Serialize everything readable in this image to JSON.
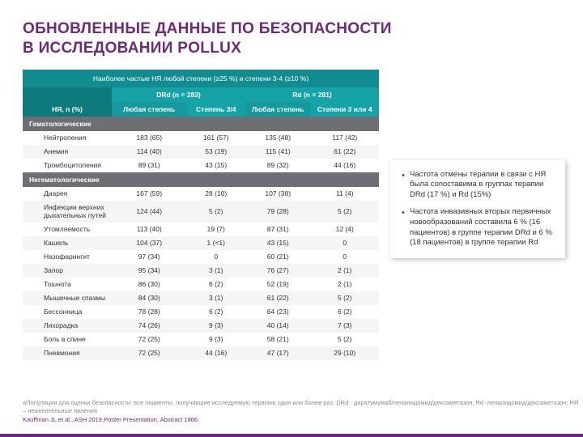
{
  "title_line1": "ОБНОВЛЕННЫЕ ДАННЫЕ ПО БЕЗОПАСНОСТИ",
  "title_line2": "В ИССЛЕДОВАНИИ POLLUX",
  "table": {
    "header_top": "Наиболее частые НЯ любой степени (≥25 %) и степени 3-4 (≥10 %)",
    "arm1": "DRd (n = 283)",
    "arm2": "Rd (n = 281)",
    "col0": "НЯ, n (%)",
    "col1": "Любая степень",
    "col2": "Степень 3/4",
    "col3": "Любая степень",
    "col4": "Степени 3 или 4",
    "sections": [
      {
        "title": "Гематологические",
        "rows": [
          {
            "name": "Нейтропения",
            "c": [
              "183 (65)",
              "161 (57)",
              "135 (48)",
              "117 (42)"
            ]
          },
          {
            "name": "Анемия",
            "c": [
              "114 (40)",
              "53 (19)",
              "115 (41)",
              "61 (22)"
            ]
          },
          {
            "name": "Тромбоцитопения",
            "c": [
              "89 (31)",
              "43 (15)",
              "89 (32)",
              "44 (16)"
            ]
          }
        ]
      },
      {
        "title": "Негематологические",
        "rows": [
          {
            "name": "Диарея",
            "c": [
              "167 (59)",
              "28 (10)",
              "107 (38)",
              "11 (4)"
            ]
          },
          {
            "name": "Инфекции верхних дыхательных путей",
            "c": [
              "124 (44)",
              "5 (2)",
              "79 (28)",
              "5 (2)"
            ]
          },
          {
            "name": "Утомляемость",
            "c": [
              "113 (40)",
              "19 (7)",
              "87 (31)",
              "12 (4)"
            ]
          },
          {
            "name": "Кашель",
            "c": [
              "104 (37)",
              "1 (<1)",
              "43 (15)",
              "0"
            ]
          },
          {
            "name": "Назофарингит",
            "c": [
              "97 (34)",
              "0",
              "60 (21)",
              "0"
            ]
          },
          {
            "name": "Запор",
            "c": [
              "95 (34)",
              "3 (1)",
              "76 (27)",
              "2 (1)"
            ]
          },
          {
            "name": "Тошнота",
            "c": [
              "86 (30)",
              "6 (2)",
              "52 (19)",
              "2 (1)"
            ]
          },
          {
            "name": "Мышечные спазмы",
            "c": [
              "84 (30)",
              "3 (1)",
              "61 (22)",
              "5 (2)"
            ]
          },
          {
            "name": "Бессонница",
            "c": [
              "78 (28)",
              "6 (2)",
              "64 (23)",
              "6 (2)"
            ]
          },
          {
            "name": "Лихорадка",
            "c": [
              "74 (26)",
              "9 (3)",
              "40 (14)",
              "7 (3)"
            ]
          },
          {
            "name": "Боль в спине",
            "c": [
              "72 (25)",
              "9 (3)",
              "58 (21)",
              "5 (2)"
            ]
          },
          {
            "name": "Пневмония",
            "c": [
              "72 (25)",
              "44 (16)",
              "47 (17)",
              "29 (10)"
            ]
          }
        ]
      }
    ]
  },
  "bullets": [
    "Частота отмены терапии в связи с НЯ была сопоставима в группах терапии DRd (17 %) и Rd (15%)",
    "Частота инвазивных вторых первичных новообразований составила 6 % (16 пациентов) в группе терапии DRd и 6 % (18 пациентов) в группе терапии Rd"
  ],
  "footnote1": "aПопуляция для оценки безопасности: все пациенты, получившие исследуемую терапию один или более раз; DRd - даратумумаб/леналидомид/дексаметазон; Rd -леналидомид/дексаметазон; НЯ – нежелательные явления",
  "footnote2": "Kauffman JL et al., ASH 2019,Poster Presentation, Abstract 1866.",
  "colors": {
    "brand": "#6d2a7b",
    "teal_dark": "#0f7a7e",
    "teal_mid": "#128c90",
    "teal_light": "#16a3a7",
    "section_row": "#6d6f74"
  }
}
